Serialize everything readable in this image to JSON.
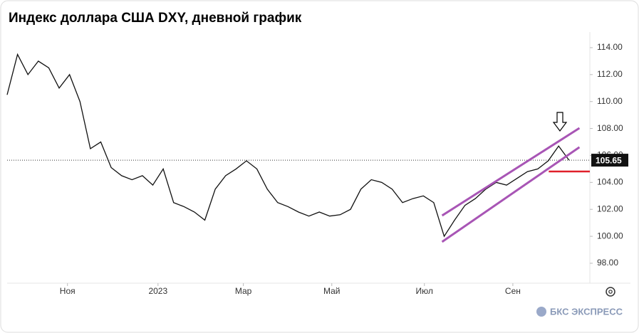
{
  "chart_data": {
    "type": "line",
    "title": "Индекс доллара США DXY, дневной график",
    "brand": "БКС ЭКСПРЕСС",
    "color": "#111111",
    "x": [
      0,
      1,
      2,
      3,
      4,
      5,
      6,
      7,
      8,
      9,
      10,
      11,
      12,
      13,
      14,
      15,
      16,
      17,
      18,
      19,
      20,
      21,
      22,
      23,
      24,
      25,
      26,
      27,
      28,
      29,
      30,
      31,
      32,
      33,
      34,
      35,
      36,
      37,
      38,
      39,
      40,
      41,
      42,
      43,
      44,
      45,
      46,
      47,
      48,
      49,
      50,
      51,
      52,
      53,
      54
    ],
    "values": [
      110.5,
      113.5,
      112,
      113,
      112.5,
      111,
      112,
      110,
      106.5,
      107,
      105.1,
      104.5,
      104.2,
      104.5,
      103.8,
      105,
      102.5,
      102.2,
      101.8,
      101.2,
      103.5,
      104.5,
      105,
      105.6,
      105,
      103.5,
      102.5,
      102.2,
      101.8,
      101.5,
      101.8,
      101.5,
      101.6,
      102,
      103.5,
      104.2,
      104,
      103.5,
      102.5,
      102.8,
      103,
      102.5,
      100,
      101.2,
      102.3,
      102.8,
      103.5,
      104,
      103.8,
      104.3,
      104.8,
      105,
      105.6,
      106.7,
      105.65
    ],
    "xlim": [
      0,
      56
    ],
    "xticks": [
      {
        "value": 5.8,
        "label": "Ноя"
      },
      {
        "value": 14.5,
        "label": "2023"
      },
      {
        "value": 22.7,
        "label": "Мар"
      },
      {
        "value": 31.2,
        "label": "Май"
      },
      {
        "value": 40.1,
        "label": "Июл"
      },
      {
        "value": 48.6,
        "label": "Сен"
      }
    ],
    "ylim": [
      96.52,
      115.16
    ],
    "yticks": [
      {
        "value": 98,
        "label": "98.00"
      },
      {
        "value": 100,
        "label": "100.00"
      },
      {
        "value": 102,
        "label": "102.00"
      },
      {
        "value": 104,
        "label": "104.00"
      },
      {
        "value": 106,
        "label": "106.00"
      },
      {
        "value": 108,
        "label": "108.00"
      },
      {
        "value": 110,
        "label": "110.00"
      },
      {
        "value": 112,
        "label": "112.00"
      },
      {
        "value": 114,
        "label": "114.00"
      }
    ],
    "last_price": {
      "value": 105.65,
      "label": "105.65"
    },
    "channel": {
      "color": "#a855b5",
      "upper": {
        "x": [
          41.8,
          55
        ],
        "values": [
          101.54,
          108.03
        ]
      },
      "lower": {
        "x": [
          41.8,
          55
        ],
        "values": [
          99.59,
          106.61
        ]
      }
    },
    "level": {
      "color": "#e0202a",
      "x": [
        52.05,
        56
      ],
      "values": [
        104.81,
        104.81
      ]
    }
  }
}
